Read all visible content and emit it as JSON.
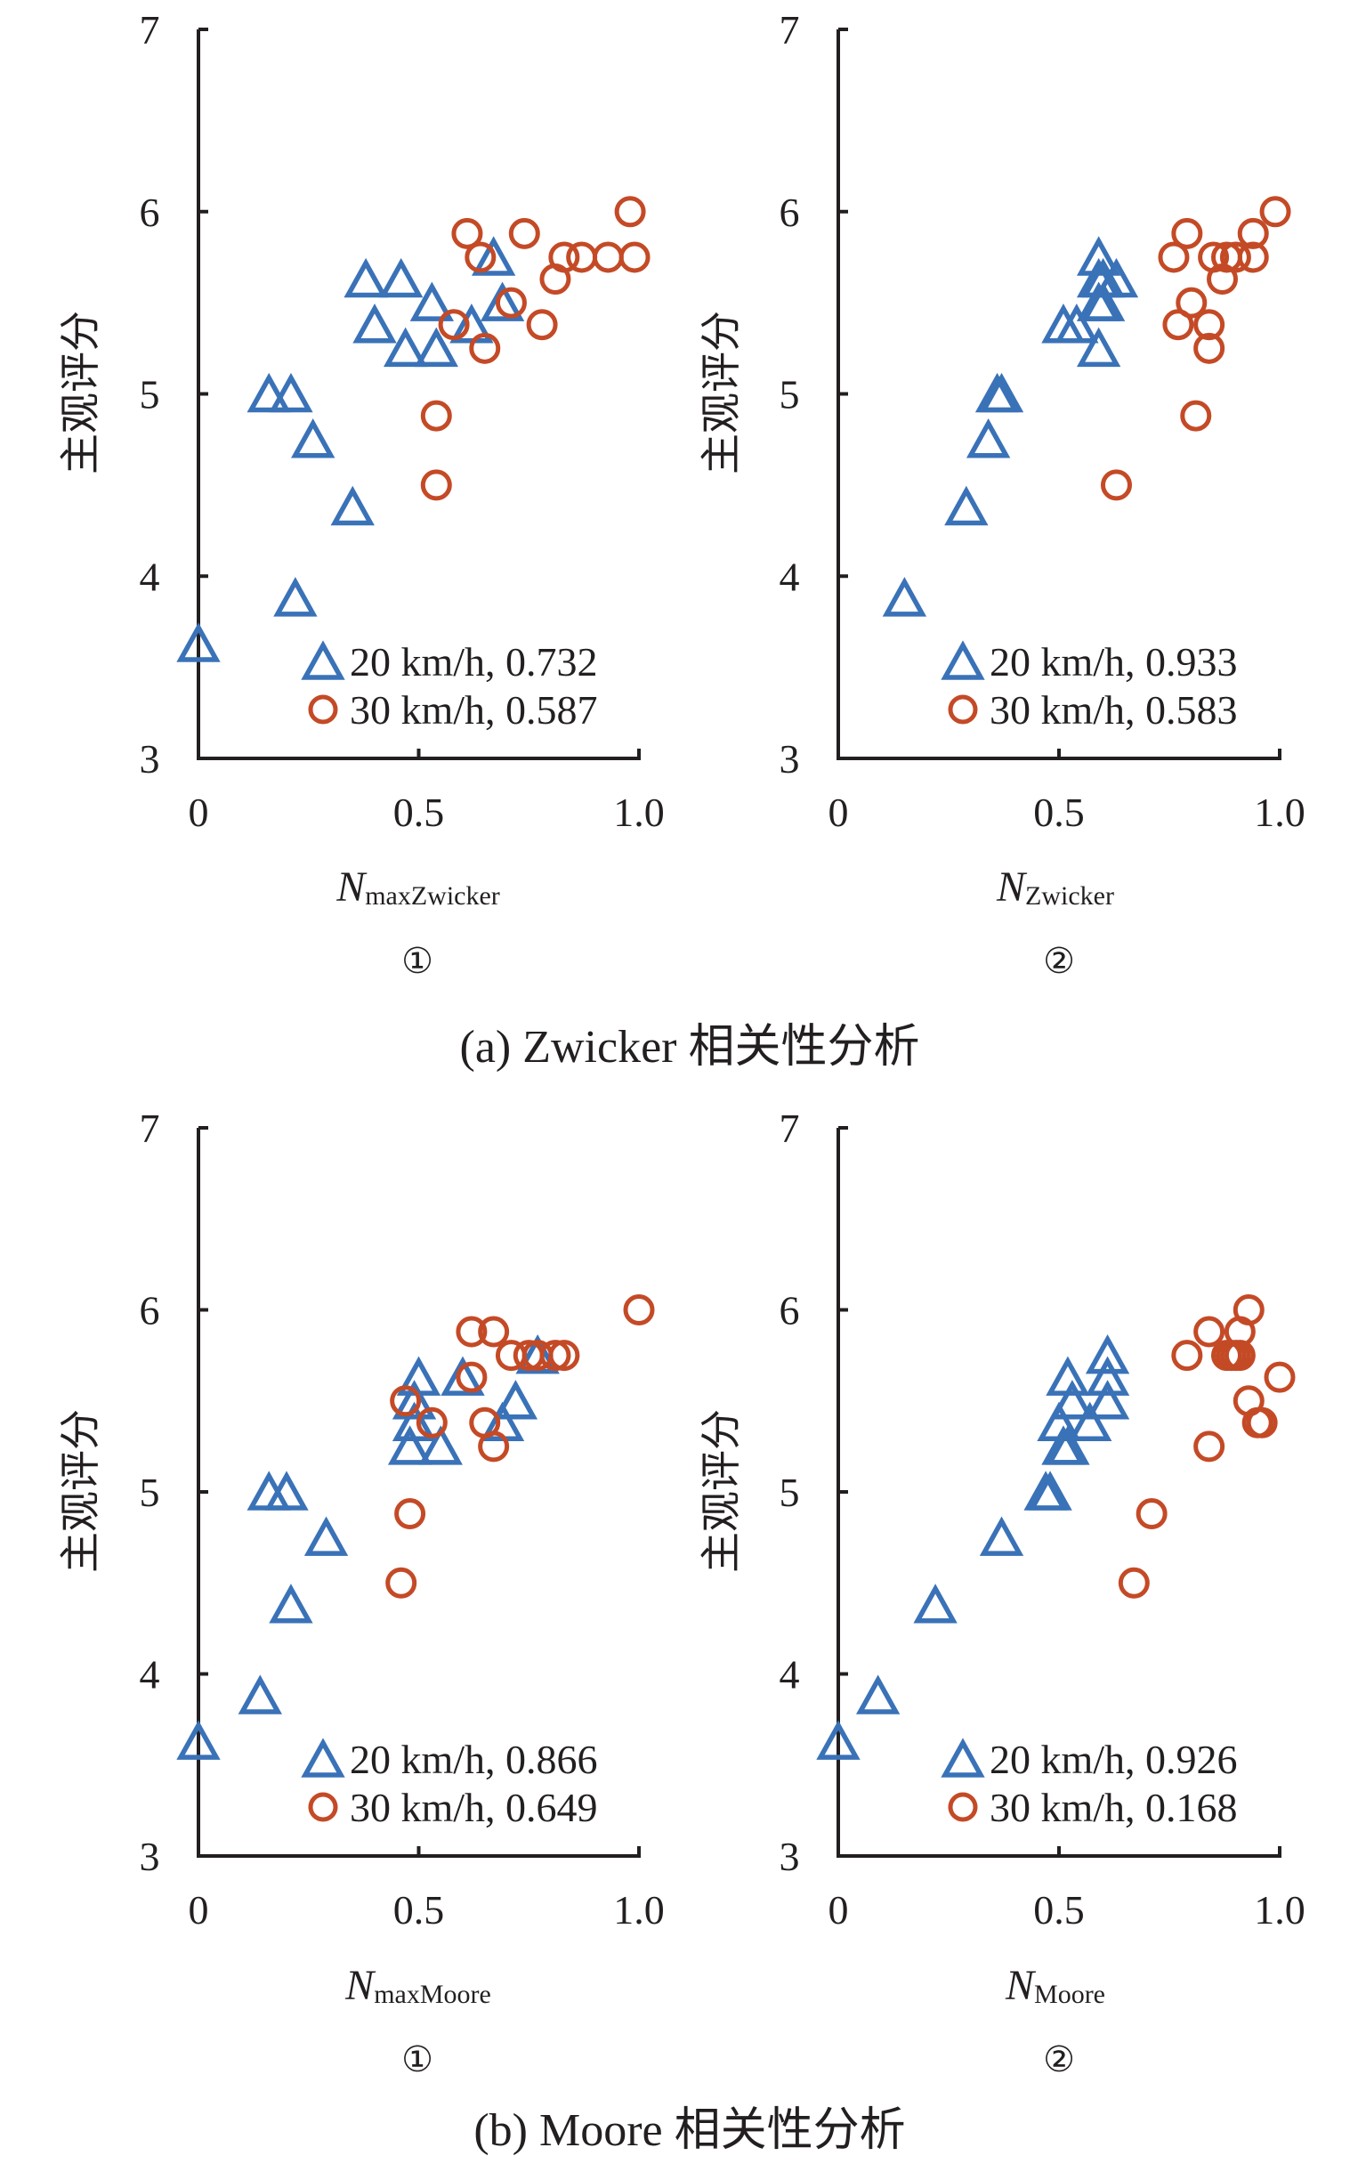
{
  "figure": {
    "captions": [
      "(a) Zwicker 相关性分析",
      "(b) Moore 相关性分析"
    ]
  },
  "colors": {
    "series_20": "#3a72b8",
    "series_30": "#c44a26",
    "axis": "#231f20"
  },
  "chart_data": [
    {
      "type": "scatter",
      "panel": "(a) ①",
      "circled_label": "①",
      "xlabel_main": "N",
      "xlabel_sub": "maxZwicker",
      "ylabel": "主观评分",
      "xlim": [
        0,
        1.0
      ],
      "ylim": [
        3,
        7
      ],
      "xticks": [
        "0",
        "0.5",
        "1.0"
      ],
      "yticks": [
        "3",
        "4",
        "5",
        "6",
        "7"
      ],
      "grid": false,
      "legend_position": "bottom-right",
      "series": [
        {
          "name": "20 km/h",
          "legend_label": "20 km/h, 0.732",
          "marker": "triangle",
          "x": [
            0.0,
            0.22,
            0.16,
            0.21,
            0.26,
            0.35,
            0.38,
            0.46,
            0.4,
            0.47,
            0.54,
            0.53,
            0.62,
            0.67,
            0.69
          ],
          "y": [
            3.63,
            3.88,
            5.0,
            5.0,
            4.75,
            4.38,
            5.63,
            5.63,
            5.38,
            5.25,
            5.25,
            5.5,
            5.38,
            5.75,
            5.5
          ]
        },
        {
          "name": "30 km/h",
          "legend_label": "30 km/h, 0.587",
          "marker": "circle",
          "x": [
            0.61,
            0.64,
            0.74,
            0.98,
            0.83,
            0.87,
            0.93,
            0.99,
            0.81,
            0.71,
            0.58,
            0.78,
            0.65,
            0.54,
            0.54
          ],
          "y": [
            5.88,
            5.75,
            5.88,
            6.0,
            5.75,
            5.75,
            5.75,
            5.75,
            5.63,
            5.5,
            5.38,
            5.38,
            5.25,
            4.88,
            4.5
          ]
        }
      ]
    },
    {
      "type": "scatter",
      "panel": "(a) ②",
      "circled_label": "②",
      "xlabel_main": "N",
      "xlabel_sub": "Zwicker",
      "ylabel": "主观评分",
      "xlim": [
        0,
        1.0
      ],
      "ylim": [
        3,
        7
      ],
      "xticks": [
        "0",
        "0.5",
        "1.0"
      ],
      "yticks": [
        "3",
        "4",
        "5",
        "6",
        "7"
      ],
      "grid": false,
      "legend_position": "bottom-right",
      "series": [
        {
          "name": "20 km/h",
          "legend_label": "20 km/h, 0.933",
          "marker": "triangle",
          "x": [
            0.15,
            0.29,
            0.34,
            0.36,
            0.37,
            0.51,
            0.54,
            0.59,
            0.59,
            0.6,
            0.59,
            0.63,
            0.59,
            0.6
          ],
          "y": [
            3.88,
            4.38,
            4.75,
            5.0,
            5.0,
            5.38,
            5.38,
            5.25,
            5.5,
            5.5,
            5.63,
            5.63,
            5.75,
            5.63
          ]
        },
        {
          "name": "30 km/h",
          "legend_label": "30 km/h, 0.583",
          "marker": "circle",
          "x": [
            0.99,
            0.79,
            0.94,
            0.76,
            0.85,
            0.88,
            0.9,
            0.94,
            0.87,
            0.8,
            0.77,
            0.84,
            0.84,
            0.81,
            0.63
          ],
          "y": [
            6.0,
            5.88,
            5.88,
            5.75,
            5.75,
            5.75,
            5.75,
            5.75,
            5.63,
            5.5,
            5.38,
            5.38,
            5.25,
            4.88,
            4.5
          ]
        }
      ]
    },
    {
      "type": "scatter",
      "panel": "(b) ①",
      "circled_label": "①",
      "xlabel_main": "N",
      "xlabel_sub": "maxMoore",
      "ylabel": "主观评分",
      "xlim": [
        0,
        1.0
      ],
      "ylim": [
        3,
        7
      ],
      "xticks": [
        "0",
        "0.5",
        "1.0"
      ],
      "yticks": [
        "3",
        "4",
        "5",
        "6",
        "7"
      ],
      "grid": false,
      "legend_position": "bottom-right",
      "series": [
        {
          "name": "20 km/h",
          "legend_label": "20 km/h, 0.866",
          "marker": "triangle",
          "x": [
            0.0,
            0.14,
            0.21,
            0.29,
            0.16,
            0.2,
            0.48,
            0.55,
            0.49,
            0.69,
            0.49,
            0.72,
            0.5,
            0.6,
            0.77
          ],
          "y": [
            3.63,
            3.88,
            4.38,
            4.75,
            5.0,
            5.0,
            5.25,
            5.25,
            5.38,
            5.38,
            5.5,
            5.5,
            5.63,
            5.63,
            5.75
          ]
        },
        {
          "name": "30 km/h",
          "legend_label": "30 km/h, 0.649",
          "marker": "circle",
          "x": [
            1.0,
            0.62,
            0.67,
            0.71,
            0.75,
            0.77,
            0.81,
            0.83,
            0.62,
            0.47,
            0.53,
            0.65,
            0.67,
            0.48,
            0.46
          ],
          "y": [
            6.0,
            5.88,
            5.88,
            5.75,
            5.75,
            5.75,
            5.75,
            5.75,
            5.63,
            5.5,
            5.38,
            5.38,
            5.25,
            4.88,
            4.5
          ]
        }
      ]
    },
    {
      "type": "scatter",
      "panel": "(b) ②",
      "circled_label": "②",
      "xlabel_main": "N",
      "xlabel_sub": "Moore",
      "ylabel": "主观评分",
      "xlim": [
        0,
        1.0
      ],
      "ylim": [
        3,
        7
      ],
      "xticks": [
        "0",
        "0.5",
        "1.0"
      ],
      "yticks": [
        "3",
        "4",
        "5",
        "6",
        "7"
      ],
      "grid": false,
      "legend_position": "bottom-right",
      "series": [
        {
          "name": "20 km/h",
          "legend_label": "20 km/h, 0.926",
          "marker": "triangle",
          "x": [
            0.0,
            0.09,
            0.22,
            0.37,
            0.47,
            0.48,
            0.51,
            0.52,
            0.5,
            0.57,
            0.53,
            0.61,
            0.52,
            0.61,
            0.61
          ],
          "y": [
            3.63,
            3.88,
            4.38,
            4.75,
            5.0,
            5.0,
            5.25,
            5.25,
            5.38,
            5.38,
            5.5,
            5.5,
            5.63,
            5.63,
            5.75
          ]
        },
        {
          "name": "30 km/h",
          "legend_label": "30 km/h, 0.168",
          "marker": "circle",
          "x": [
            0.93,
            0.84,
            0.91,
            0.79,
            0.88,
            0.89,
            0.9,
            0.91,
            1.0,
            0.93,
            0.95,
            0.96,
            0.84,
            0.71,
            0.67
          ],
          "y": [
            6.0,
            5.88,
            5.88,
            5.75,
            5.75,
            5.75,
            5.75,
            5.75,
            5.63,
            5.5,
            5.38,
            5.38,
            5.25,
            4.88,
            4.5
          ]
        }
      ]
    }
  ]
}
